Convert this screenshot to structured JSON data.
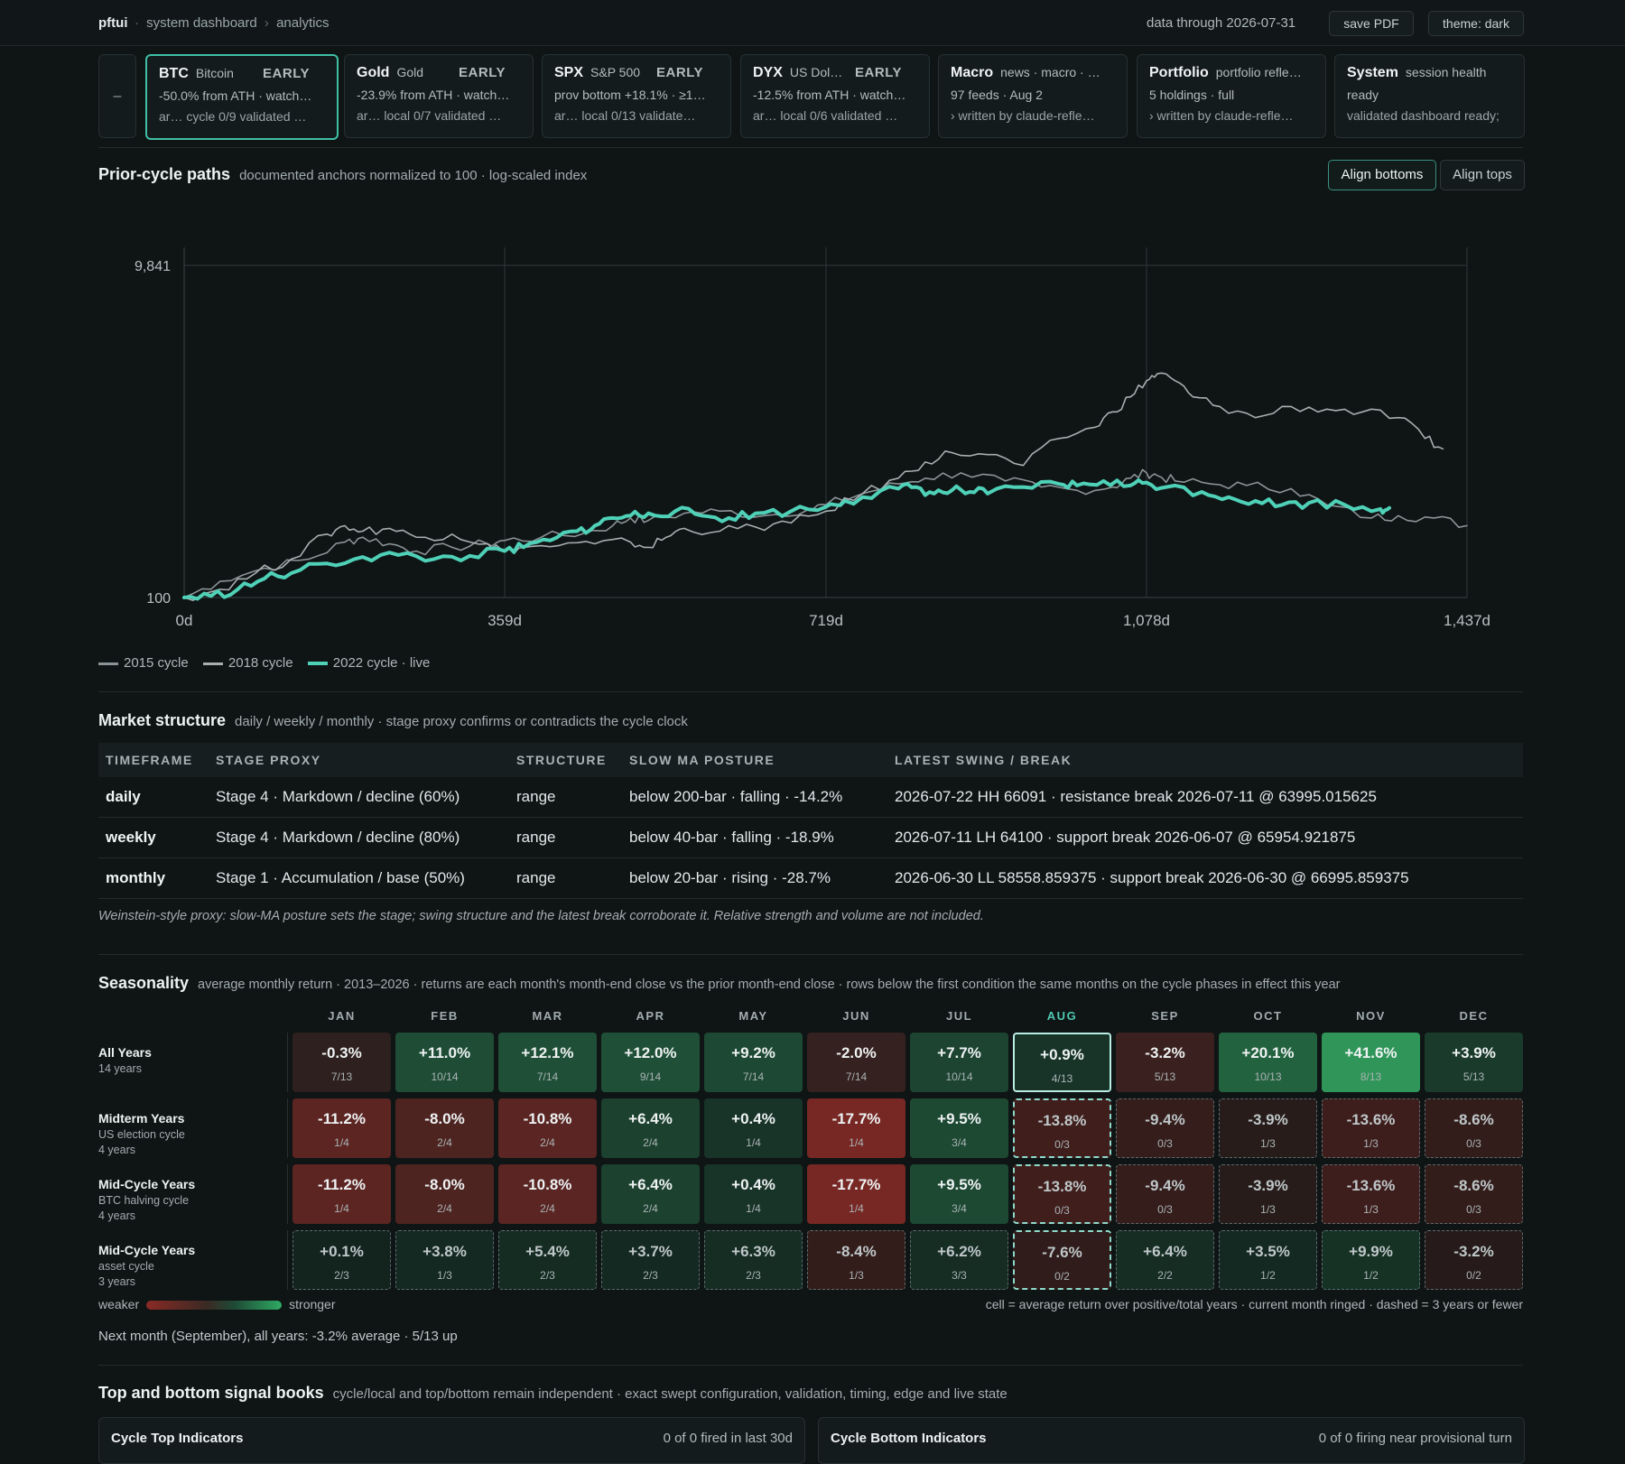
{
  "header": {
    "brand": "pftui",
    "crumb_section": "system dashboard",
    "crumb_page": "analytics",
    "data_through": "data through 2026-07-31",
    "save_pdf": "save PDF",
    "theme": "theme: dark"
  },
  "cards": {
    "collapse": "–",
    "items": [
      {
        "code": "BTC",
        "name": "Bitcoin",
        "badge": "EARLY",
        "line2": "-50.0% from ATH · watch…",
        "line3": "ar…  cycle 0/9 validated …"
      },
      {
        "code": "Gold",
        "name": "Gold",
        "badge": "EARLY",
        "line2": "-23.9% from ATH · watch…",
        "line3": "ar…  local 0/7 validated …"
      },
      {
        "code": "SPX",
        "name": "S&P 500",
        "badge": "EARLY",
        "line2": "prov bottom +18.1% · ≥1…",
        "line3": "ar…  local 0/13 validate…"
      },
      {
        "code": "DYX",
        "name": "US Dol…",
        "badge": "EARLY",
        "line2": "-12.5% from ATH · watch…",
        "line3": "ar…  local 0/6 validated …"
      },
      {
        "code": "Macro",
        "name": "news · macro · …",
        "badge": "",
        "line2": "97 feeds · Aug 2",
        "line3": "›  written by claude-refle…"
      },
      {
        "code": "Portfolio",
        "name": "portfolio refle…",
        "badge": "",
        "line2": "5 holdings · full",
        "line3": "›  written by claude-refle…"
      },
      {
        "code": "System",
        "name": "session health",
        "badge": "",
        "line2": "ready",
        "line3": "validated dashboard ready;"
      }
    ]
  },
  "prior_cycle": {
    "title": "Prior-cycle paths",
    "subtitle": "documented anchors normalized to 100 · log-scaled index",
    "align_bottoms": "Align bottoms",
    "align_tops": "Align tops"
  },
  "chart_data": {
    "type": "line",
    "y_scale": "log",
    "ylim": [
      100,
      9841
    ],
    "xlim": [
      0,
      1437
    ],
    "y_ticks": [
      "9,841",
      "100"
    ],
    "x_ticks": [
      "0d",
      "359d",
      "719d",
      "1,078d",
      "1,437d"
    ],
    "x_tick_values": [
      0,
      359,
      719,
      1078,
      1437
    ],
    "grid": "vertical",
    "colors": {
      "2015": "#8b9497",
      "2018": "#a7afb1",
      "2022": "#4fd1b8"
    },
    "series": [
      {
        "name": "2015 cycle",
        "x": [
          0,
          40,
          90,
          140,
          180,
          200,
          230,
          260,
          300,
          340,
          359,
          400,
          450,
          480,
          500,
          520,
          560,
          600,
          650,
          700,
          719,
          760,
          800,
          830,
          870,
          920,
          960,
          1000,
          1040,
          1060,
          1078,
          1090,
          1110,
          1150,
          1190,
          1240,
          1280,
          1330,
          1360,
          1400,
          1437
        ],
        "y": [
          100,
          125,
          150,
          170,
          215,
          230,
          210,
          190,
          200,
          210,
          220,
          230,
          245,
          270,
          300,
          290,
          320,
          330,
          310,
          340,
          360,
          420,
          480,
          520,
          560,
          500,
          460,
          440,
          460,
          520,
          560,
          540,
          500,
          480,
          470,
          450,
          360,
          300,
          310,
          300,
          270
        ]
      },
      {
        "name": "2018 cycle",
        "x": [
          0,
          40,
          80,
          120,
          160,
          180,
          200,
          230,
          260,
          300,
          340,
          359,
          380,
          420,
          460,
          500,
          520,
          540,
          560,
          600,
          640,
          680,
          719,
          760,
          800,
          830,
          860,
          900,
          940,
          980,
          1020,
          1040,
          1060,
          1078,
          1090,
          1110,
          1130,
          1160,
          1200,
          1240,
          1280,
          1320,
          1360,
          1390,
          1410
        ],
        "y": [
          100,
          112,
          140,
          170,
          240,
          270,
          250,
          260,
          230,
          240,
          210,
          190,
          200,
          205,
          210,
          215,
          200,
          230,
          260,
          250,
          265,
          280,
          330,
          420,
          520,
          650,
          740,
          720,
          620,
          900,
          1050,
          1300,
          1600,
          2000,
          2200,
          2000,
          1600,
          1400,
          1200,
          1400,
          1350,
          1300,
          1200,
          900,
          780
        ]
      },
      {
        "name": "2022 cycle · live",
        "x": [
          0,
          30,
          60,
          90,
          120,
          160,
          200,
          240,
          280,
          320,
          359,
          380,
          410,
          440,
          460,
          480,
          500,
          520,
          550,
          580,
          610,
          640,
          680,
          719,
          740,
          760,
          800,
          820,
          840,
          860,
          880,
          900,
          940,
          980,
          1000,
          1030,
          1060,
          1078,
          1100,
          1140,
          1170,
          1200,
          1230,
          1260,
          1300,
          1340,
          1350
        ],
        "y": [
          100,
          102,
          112,
          130,
          140,
          160,
          175,
          180,
          170,
          178,
          190,
          200,
          220,
          250,
          270,
          300,
          310,
          320,
          330,
          310,
          300,
          320,
          330,
          350,
          380,
          400,
          450,
          460,
          420,
          440,
          430,
          420,
          460,
          480,
          470,
          500,
          470,
          490,
          460,
          430,
          400,
          380,
          360,
          370,
          360,
          340,
          345
        ]
      }
    ]
  },
  "legend": [
    "2015 cycle",
    "2018 cycle",
    "2022 cycle · live"
  ],
  "market_structure": {
    "title": "Market structure",
    "subtitle": "daily / weekly / monthly · stage proxy confirms or contradicts the cycle clock",
    "headers": [
      "TIMEFRAME",
      "STAGE PROXY",
      "STRUCTURE",
      "SLOW MA POSTURE",
      "LATEST SWING / BREAK"
    ],
    "rows": [
      [
        "daily",
        "Stage 4 · Markdown / decline (60%)",
        "range",
        "below 200-bar · falling · -14.2%",
        "2026-07-22 HH 66091 · resistance break 2026-07-11 @ 63995.015625"
      ],
      [
        "weekly",
        "Stage 4 · Markdown / decline (80%)",
        "range",
        "below 40-bar · falling · -18.9%",
        "2026-07-11 LH 64100 · support break 2026-06-07 @ 65954.921875"
      ],
      [
        "monthly",
        "Stage 1 · Accumulation / base (50%)",
        "range",
        "below 20-bar · rising · -28.7%",
        "2026-06-30 LL 58558.859375 · support break 2026-06-30 @ 66995.859375"
      ]
    ],
    "note": "Weinstein-style proxy: slow-MA posture sets the stage; swing structure and the latest break corroborate it. Relative strength and volume are not included."
  },
  "seasonality": {
    "title": "Seasonality",
    "subtitle": "average monthly return · 2013–2026 · returns are each month's month-end close vs the prior month-end close · rows below the first condition the same months on the cycle phases in effect this year",
    "months": [
      "JAN",
      "FEB",
      "MAR",
      "APR",
      "MAY",
      "JUN",
      "JUL",
      "AUG",
      "SEP",
      "OCT",
      "NOV",
      "DEC"
    ],
    "current_month": "AUG",
    "rows": [
      {
        "title": "All Years",
        "subs": [
          "14 years"
        ],
        "dashed": false,
        "cells": [
          [
            "-0.3%",
            "7/13"
          ],
          [
            "+11.0%",
            "10/14"
          ],
          [
            "+12.1%",
            "7/14"
          ],
          [
            "+12.0%",
            "9/14"
          ],
          [
            "+9.2%",
            "7/14"
          ],
          [
            "-2.0%",
            "7/14"
          ],
          [
            "+7.7%",
            "10/14"
          ],
          [
            "+0.9%",
            "4/13"
          ],
          [
            "-3.2%",
            "5/13"
          ],
          [
            "+20.1%",
            "10/13"
          ],
          [
            "+41.6%",
            "8/13"
          ],
          [
            "+3.9%",
            "5/13"
          ]
        ]
      },
      {
        "title": "Midterm Years",
        "subs": [
          "US election cycle",
          "4 years"
        ],
        "dashed": false,
        "cells": [
          [
            "-11.2%",
            "1/4"
          ],
          [
            "-8.0%",
            "2/4"
          ],
          [
            "-10.8%",
            "2/4"
          ],
          [
            "+6.4%",
            "2/4"
          ],
          [
            "+0.4%",
            "1/4"
          ],
          [
            "-17.7%",
            "1/4"
          ],
          [
            "+9.5%",
            "3/4"
          ],
          [
            "-13.8%",
            "0/3"
          ],
          [
            "-9.4%",
            "0/3"
          ],
          [
            "-3.9%",
            "1/3"
          ],
          [
            "-13.6%",
            "1/3"
          ],
          [
            "-8.6%",
            "0/3"
          ]
        ]
      },
      {
        "title": "Mid-Cycle Years",
        "subs": [
          "BTC halving cycle",
          "4 years"
        ],
        "dashed": false,
        "cells": [
          [
            "-11.2%",
            "1/4"
          ],
          [
            "-8.0%",
            "2/4"
          ],
          [
            "-10.8%",
            "2/4"
          ],
          [
            "+6.4%",
            "2/4"
          ],
          [
            "+0.4%",
            "1/4"
          ],
          [
            "-17.7%",
            "1/4"
          ],
          [
            "+9.5%",
            "3/4"
          ],
          [
            "-13.8%",
            "0/3"
          ],
          [
            "-9.4%",
            "0/3"
          ],
          [
            "-3.9%",
            "1/3"
          ],
          [
            "-13.6%",
            "1/3"
          ],
          [
            "-8.6%",
            "0/3"
          ]
        ]
      },
      {
        "title": "Mid-Cycle Years",
        "subs": [
          "asset cycle",
          "3 years"
        ],
        "dashed": true,
        "cells": [
          [
            "+0.1%",
            "2/3"
          ],
          [
            "+3.8%",
            "1/3"
          ],
          [
            "+5.4%",
            "2/3"
          ],
          [
            "+3.7%",
            "2/3"
          ],
          [
            "+6.3%",
            "2/3"
          ],
          [
            "-8.4%",
            "1/3"
          ],
          [
            "+6.2%",
            "3/3"
          ],
          [
            "-7.6%",
            "0/2"
          ],
          [
            "+6.4%",
            "2/2"
          ],
          [
            "+3.5%",
            "1/2"
          ],
          [
            "+9.9%",
            "1/2"
          ],
          [
            "-3.2%",
            "0/2"
          ]
        ]
      }
    ],
    "scale_weaker": "weaker",
    "scale_stronger": "stronger",
    "scale_note": "cell = average return over positive/total years · current month ringed · dashed = 3 years or fewer",
    "next_month": "Next month (September), all years: -3.2% average · 5/13 up"
  },
  "signal_books": {
    "title": "Top and bottom signal books",
    "subtitle": "cycle/local and top/bottom remain independent · exact swept configuration, validation, timing, edge and live state",
    "top_title": "Cycle Top Indicators",
    "top_status": "0 of 0 fired in last 30d",
    "bottom_title": "Cycle Bottom Indicators",
    "bottom_status": "0 of 0 firing near provisional turn"
  }
}
